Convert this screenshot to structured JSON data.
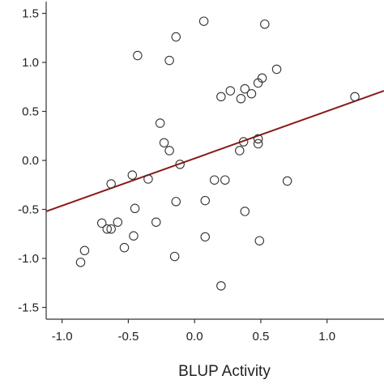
{
  "chart_data": {
    "type": "scatter",
    "title": "",
    "xlabel": "BLUP Activity",
    "ylabel": "",
    "xlim": [
      -1.12,
      1.43
    ],
    "ylim": [
      -1.62,
      1.62
    ],
    "xticks": [
      -1.0,
      -0.5,
      0.0,
      0.5,
      1.0
    ],
    "yticks": [
      1.5,
      1.0,
      0.5,
      0.0,
      -0.5,
      -1.0,
      -1.5
    ],
    "xtick_labels": [
      "-1.0",
      "-0.5",
      "0.0",
      "0.5",
      "1.0"
    ],
    "ytick_labels": [
      "1.5",
      "1.0",
      "0.5",
      "0.0",
      "-0.5",
      "-1.0",
      "-1.5"
    ],
    "grid": false,
    "series": [
      {
        "type": "scatter",
        "marker": "open-circle",
        "color": "#333333",
        "points": [
          {
            "x": 0.07,
            "y": 1.42
          },
          {
            "x": 0.53,
            "y": 1.39
          },
          {
            "x": -0.14,
            "y": 1.26
          },
          {
            "x": -0.43,
            "y": 1.07
          },
          {
            "x": -0.19,
            "y": 1.02
          },
          {
            "x": 0.62,
            "y": 0.93
          },
          {
            "x": 0.51,
            "y": 0.84
          },
          {
            "x": 0.48,
            "y": 0.79
          },
          {
            "x": 0.38,
            "y": 0.73
          },
          {
            "x": 0.27,
            "y": 0.71
          },
          {
            "x": 0.43,
            "y": 0.68
          },
          {
            "x": 0.2,
            "y": 0.65
          },
          {
            "x": 0.35,
            "y": 0.63
          },
          {
            "x": 1.21,
            "y": 0.65
          },
          {
            "x": -0.26,
            "y": 0.38
          },
          {
            "x": -0.23,
            "y": 0.18
          },
          {
            "x": 0.37,
            "y": 0.19
          },
          {
            "x": 0.48,
            "y": 0.22
          },
          {
            "x": 0.48,
            "y": 0.17
          },
          {
            "x": -0.19,
            "y": 0.1
          },
          {
            "x": 0.34,
            "y": 0.1
          },
          {
            "x": -0.11,
            "y": -0.04
          },
          {
            "x": -0.47,
            "y": -0.15
          },
          {
            "x": -0.35,
            "y": -0.19
          },
          {
            "x": 0.15,
            "y": -0.2
          },
          {
            "x": 0.23,
            "y": -0.2
          },
          {
            "x": 0.7,
            "y": -0.21
          },
          {
            "x": -0.63,
            "y": -0.24
          },
          {
            "x": -0.14,
            "y": -0.42
          },
          {
            "x": 0.08,
            "y": -0.41
          },
          {
            "x": -0.45,
            "y": -0.49
          },
          {
            "x": 0.38,
            "y": -0.52
          },
          {
            "x": -0.58,
            "y": -0.63
          },
          {
            "x": -0.7,
            "y": -0.64
          },
          {
            "x": -0.29,
            "y": -0.63
          },
          {
            "x": -0.66,
            "y": -0.7
          },
          {
            "x": -0.63,
            "y": -0.7
          },
          {
            "x": -0.46,
            "y": -0.77
          },
          {
            "x": 0.08,
            "y": -0.78
          },
          {
            "x": 0.49,
            "y": -0.82
          },
          {
            "x": -0.53,
            "y": -0.89
          },
          {
            "x": -0.83,
            "y": -0.92
          },
          {
            "x": -0.15,
            "y": -0.98
          },
          {
            "x": -0.86,
            "y": -1.04
          },
          {
            "x": 0.2,
            "y": -1.28
          }
        ]
      },
      {
        "type": "line",
        "role": "regression-line",
        "color": "#8b1a1a",
        "x": [
          -1.12,
          1.43
        ],
        "y": [
          -0.52,
          0.71
        ]
      }
    ]
  }
}
